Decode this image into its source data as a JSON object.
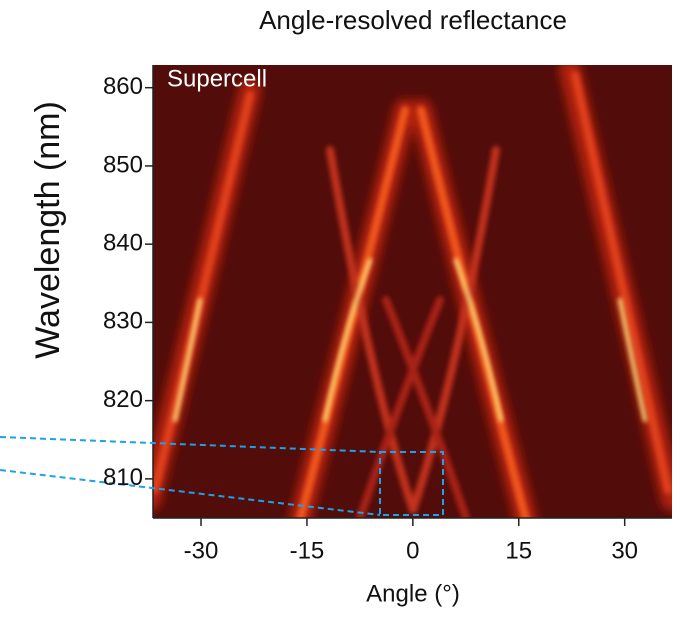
{
  "chart_data": {
    "type": "heatmap",
    "title": "Angle-resolved reflectance",
    "annotation": "Supercell",
    "xlabel": "Angle (°)",
    "ylabel": "Wavelength (nm)",
    "xlim": [
      -36.8,
      36.7
    ],
    "xticks": [
      -30,
      -15,
      0,
      15,
      30
    ],
    "ylim": [
      805,
      862.9
    ],
    "yticks": [
      810,
      820,
      830,
      840,
      850,
      860
    ]
  }
}
